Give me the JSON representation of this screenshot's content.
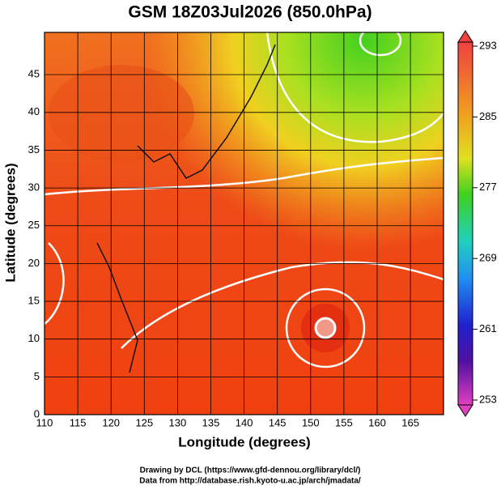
{
  "title": "GSM 18Z03Jul2026 (850.0hPa)",
  "x_axis": {
    "label": "Longitude (degrees)",
    "ticks": [
      110,
      115,
      120,
      125,
      130,
      135,
      140,
      145,
      150,
      155,
      160,
      165
    ]
  },
  "y_axis": {
    "label": "Latitude  (degrees)",
    "ticks": [
      0,
      5,
      10,
      15,
      20,
      25,
      30,
      35,
      40,
      45
    ]
  },
  "colorbar": {
    "ticks": [
      293,
      285,
      277,
      269,
      261,
      253
    ]
  },
  "credits": [
    "Drawing by DCL (https://www.gfd-dennou.org/library/dcl/)",
    "Data from http://database.rish.kyoto-u.ac.jp/arch/jmadata/"
  ]
}
